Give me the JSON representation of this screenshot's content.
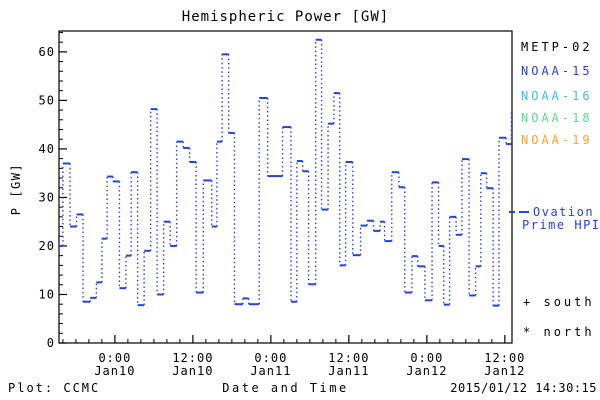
{
  "title": "Hemispheric Power [GW]",
  "y_axis": {
    "label": "P [GW]"
  },
  "x_axis": {
    "label": "Date and Time"
  },
  "footer": {
    "credit": "Plot: CCMC",
    "timestamp": "2015/01/12 14:30:15"
  },
  "colors": {
    "background": "#ffffff",
    "axis": "#000000",
    "data_line": "#2244dd",
    "ovation_legend": "#2244dd"
  },
  "legend": {
    "satellites": [
      {
        "label": "METP-02",
        "color": "#000000"
      },
      {
        "label": "NOAA-15",
        "color": "#2343d7"
      },
      {
        "label": "NOAA-16",
        "color": "#3bbcf0"
      },
      {
        "label": "NOAA-18",
        "color": "#57da8b"
      },
      {
        "label": "NOAA-19",
        "color": "#ffa028"
      }
    ],
    "line_label_1": "Ovation",
    "line_label_2": "Prime HPI",
    "markers": [
      {
        "symbol": "+",
        "label": "south"
      },
      {
        "symbol": "*",
        "label": "north"
      }
    ]
  },
  "chart_data": {
    "type": "line",
    "style": "step-dashed",
    "title": "Hemispheric Power [GW]",
    "xlabel": "Date and Time",
    "ylabel": "P [GW]",
    "ylim": [
      0,
      64.3
    ],
    "yticks": [
      0,
      10,
      20,
      30,
      40,
      50,
      60
    ],
    "y_minor_step": 2,
    "xlim_hours": [
      -8.6,
      61.1
    ],
    "x_hours_relative_to": "2015-01-10 00:00",
    "x_minor_step_hours": 2,
    "xticks": [
      {
        "hour": 0,
        "time": "0:00",
        "date": "Jan10"
      },
      {
        "hour": 12,
        "time": "12:00",
        "date": "Jan10"
      },
      {
        "hour": 24,
        "time": "0:00",
        "date": "Jan11"
      },
      {
        "hour": 36,
        "time": "12:00",
        "date": "Jan11"
      },
      {
        "hour": 48,
        "time": "0:00",
        "date": "Jan12"
      },
      {
        "hour": 60,
        "time": "12:00",
        "date": "Jan12"
      }
    ],
    "series_name": "Hemispheric Power HPI (blue step line)",
    "segments_hours_gw": [
      [
        -8.6,
        -8.0,
        20
      ],
      [
        -8.0,
        -6.9,
        37
      ],
      [
        -6.9,
        -5.9,
        24
      ],
      [
        -5.9,
        -4.9,
        26.5
      ],
      [
        -4.9,
        -3.8,
        8.5
      ],
      [
        -3.8,
        -2.85,
        9.3
      ],
      [
        -2.85,
        -2.0,
        12.5
      ],
      [
        -2.0,
        -1.2,
        21.5
      ],
      [
        -1.2,
        -0.3,
        34.3
      ],
      [
        -0.3,
        0.7,
        33.3
      ],
      [
        0.7,
        1.7,
        11.3
      ],
      [
        1.7,
        2.5,
        18
      ],
      [
        2.5,
        3.5,
        35.2
      ],
      [
        3.5,
        4.5,
        7.8
      ],
      [
        4.5,
        5.5,
        19
      ],
      [
        5.5,
        6.5,
        48.2
      ],
      [
        6.5,
        7.5,
        10
      ],
      [
        7.5,
        8.5,
        25
      ],
      [
        8.5,
        9.5,
        20
      ],
      [
        9.5,
        10.5,
        41.5
      ],
      [
        10.5,
        11.5,
        40.2
      ],
      [
        11.5,
        12.5,
        37.3
      ],
      [
        12.5,
        13.6,
        10.4
      ],
      [
        13.6,
        14.9,
        33.5
      ],
      [
        14.9,
        15.7,
        24
      ],
      [
        15.7,
        16.5,
        41.5
      ],
      [
        16.5,
        17.5,
        59.5
      ],
      [
        17.5,
        18.4,
        43.3
      ],
      [
        18.4,
        19.7,
        8
      ],
      [
        19.7,
        20.6,
        9.2
      ],
      [
        20.6,
        22.2,
        8
      ],
      [
        22.2,
        23.5,
        50.5
      ],
      [
        23.5,
        25.8,
        34.4
      ],
      [
        25.8,
        27.1,
        44.5
      ],
      [
        27.1,
        28.0,
        8.5
      ],
      [
        28.0,
        28.9,
        37.5
      ],
      [
        28.9,
        29.8,
        35.4
      ],
      [
        29.8,
        30.9,
        12.1
      ],
      [
        30.9,
        31.8,
        62.5
      ],
      [
        31.8,
        32.8,
        27.5
      ],
      [
        32.8,
        33.7,
        45.2
      ],
      [
        33.7,
        34.6,
        51.5
      ],
      [
        34.6,
        35.5,
        16
      ],
      [
        35.5,
        36.6,
        37.3
      ],
      [
        36.6,
        37.8,
        18.1
      ],
      [
        37.8,
        38.8,
        24.2
      ],
      [
        38.8,
        39.8,
        25.2
      ],
      [
        39.8,
        40.8,
        23.1
      ],
      [
        40.8,
        41.5,
        25
      ],
      [
        41.5,
        42.6,
        21
      ],
      [
        42.6,
        43.7,
        35.2
      ],
      [
        43.7,
        44.6,
        32.1
      ],
      [
        44.6,
        45.7,
        10.4
      ],
      [
        45.7,
        46.6,
        17.9
      ],
      [
        46.6,
        47.7,
        15.8
      ],
      [
        47.7,
        48.8,
        8.8
      ],
      [
        48.8,
        49.8,
        33.1
      ],
      [
        49.8,
        50.6,
        20
      ],
      [
        50.6,
        51.5,
        7.9
      ],
      [
        51.5,
        52.5,
        26
      ],
      [
        52.5,
        53.4,
        22.3
      ],
      [
        53.4,
        54.5,
        37.9
      ],
      [
        54.5,
        55.5,
        9.8
      ],
      [
        55.5,
        56.3,
        15.8
      ],
      [
        56.3,
        57.2,
        35
      ],
      [
        57.2,
        58.2,
        31.9
      ],
      [
        58.2,
        59.1,
        7.7
      ],
      [
        59.1,
        60.2,
        42.3
      ],
      [
        60.2,
        61.0,
        41
      ],
      [
        61.0,
        61.1,
        47.5
      ]
    ]
  }
}
